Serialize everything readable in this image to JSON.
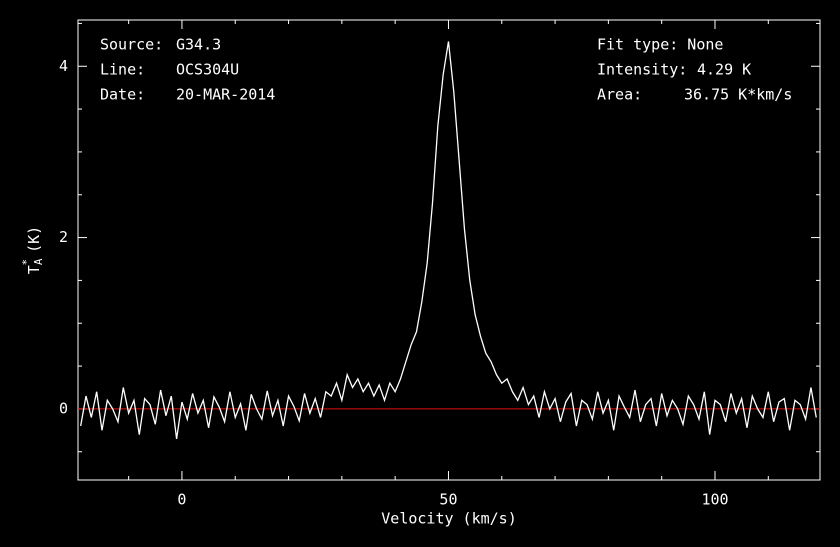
{
  "chart_data": {
    "type": "line",
    "xlabel": "Velocity (km/s)",
    "ylabel": {
      "main": "T",
      "sub": "A",
      "sup": "*",
      "unit": "(K)"
    },
    "info_left": [
      [
        "Source:",
        "G34.3"
      ],
      [
        "Line:",
        "OCS304U"
      ],
      [
        "Date:",
        "20-MAR-2014"
      ]
    ],
    "info_right": [
      [
        "Fit type: None"
      ],
      [
        "Intensity:",
        "4.29 K"
      ],
      [
        "Area:",
        "36.75 K*km/s"
      ]
    ],
    "xlim": [
      -19.5,
      119.7
    ],
    "ylim": [
      -0.83,
      4.54
    ],
    "xticks": [
      0,
      50,
      100
    ],
    "yticks": [
      0,
      2,
      4
    ],
    "xminorticks": [
      -10,
      10,
      20,
      30,
      40,
      60,
      70,
      80,
      90,
      110
    ],
    "yminorticks": [
      -0.5,
      0.5,
      1,
      1.5,
      2.5,
      3,
      3.5,
      4.5
    ],
    "baseline": 0,
    "baseline_color": "#e01010",
    "series": [
      {
        "color": "#ffffff",
        "x": [
          -19,
          -18,
          -17,
          -16,
          -15,
          -14,
          -13,
          -12,
          -11,
          -10,
          -9,
          -8,
          -7,
          -6,
          -5,
          -4,
          -3,
          -2,
          -1,
          0,
          1,
          2,
          3,
          4,
          5,
          6,
          7,
          8,
          9,
          10,
          11,
          12,
          13,
          14,
          15,
          16,
          17,
          18,
          19,
          20,
          21,
          22,
          23,
          24,
          25,
          26,
          27,
          28,
          29,
          30,
          31,
          32,
          33,
          34,
          35,
          36,
          37,
          38,
          39,
          40,
          41,
          42,
          43,
          44,
          45,
          46,
          47,
          48,
          49,
          50,
          51,
          52,
          53,
          54,
          55,
          56,
          57,
          58,
          59,
          60,
          61,
          62,
          63,
          64,
          65,
          66,
          67,
          68,
          69,
          70,
          71,
          72,
          73,
          74,
          75,
          76,
          77,
          78,
          79,
          80,
          81,
          82,
          83,
          84,
          85,
          86,
          87,
          88,
          89,
          90,
          91,
          92,
          93,
          94,
          95,
          96,
          97,
          98,
          99,
          100,
          101,
          102,
          103,
          104,
          105,
          106,
          107,
          108,
          109,
          110,
          111,
          112,
          113,
          114,
          115,
          116,
          117,
          118,
          119
        ],
        "values": [
          -0.2,
          0.15,
          -0.1,
          0.2,
          -0.25,
          0.1,
          0.0,
          -0.15,
          0.25,
          -0.05,
          0.1,
          -0.3,
          0.12,
          0.05,
          -0.18,
          0.22,
          -0.08,
          0.15,
          -0.35,
          0.08,
          -0.12,
          0.18,
          -0.05,
          0.1,
          -0.22,
          0.14,
          0.02,
          -0.15,
          0.2,
          -0.1,
          0.06,
          -0.25,
          0.17,
          0.0,
          -0.12,
          0.21,
          -0.08,
          0.1,
          -0.2,
          0.15,
          0.03,
          -0.14,
          0.18,
          -0.05,
          0.12,
          -0.1,
          0.2,
          0.15,
          0.3,
          0.1,
          0.4,
          0.25,
          0.35,
          0.2,
          0.3,
          0.15,
          0.28,
          0.1,
          0.3,
          0.2,
          0.35,
          0.55,
          0.75,
          0.9,
          1.25,
          1.7,
          2.4,
          3.3,
          3.9,
          4.29,
          3.7,
          2.9,
          2.1,
          1.5,
          1.1,
          0.85,
          0.65,
          0.55,
          0.4,
          0.3,
          0.35,
          0.2,
          0.1,
          0.25,
          0.05,
          0.15,
          -0.1,
          0.2,
          0.0,
          0.12,
          -0.15,
          0.08,
          0.18,
          -0.2,
          0.1,
          0.05,
          -0.12,
          0.2,
          -0.05,
          0.1,
          -0.25,
          0.15,
          0.02,
          -0.1,
          0.22,
          -0.15,
          0.05,
          0.12,
          -0.2,
          0.18,
          -0.08,
          0.1,
          0.0,
          -0.18,
          0.15,
          0.05,
          -0.12,
          0.2,
          -0.3,
          0.1,
          0.05,
          -0.15,
          0.18,
          -0.05,
          0.12,
          -0.22,
          0.15,
          0.0,
          -0.1,
          0.2,
          -0.15,
          0.08,
          0.12,
          -0.25,
          0.1,
          0.05,
          -0.12,
          0.25,
          -0.1
        ]
      }
    ]
  }
}
